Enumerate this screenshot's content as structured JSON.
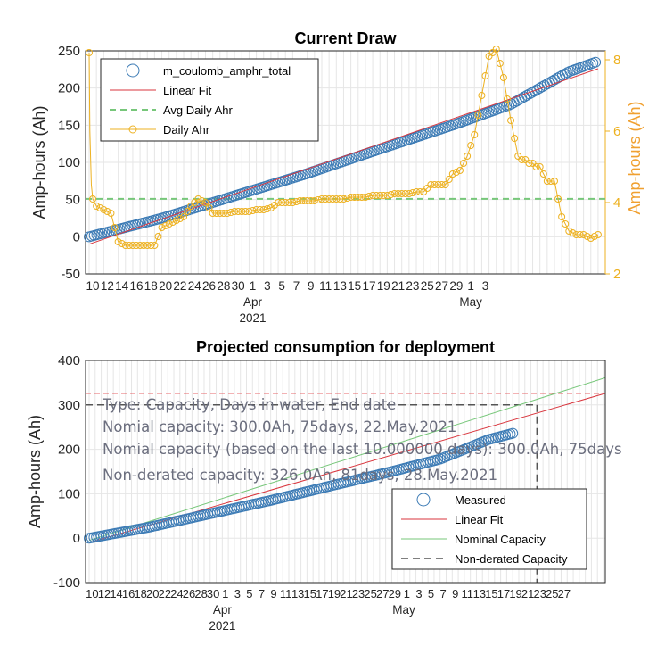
{
  "chart_data": [
    {
      "type": "line",
      "title": "Current Draw",
      "ylabel": "Amp-hours (Ah)",
      "ylabel_right": "Amp-hours (Ah)",
      "ylim": [
        -50,
        250
      ],
      "ylim_right": [
        2,
        8.25
      ],
      "yticks": [
        "-50",
        "0",
        "50",
        "100",
        "150",
        "200",
        "250"
      ],
      "yticks_right": [
        "2",
        "4",
        "6",
        "8"
      ],
      "xtick_labels": [
        "10",
        "12",
        "14",
        "16",
        "18",
        "20",
        "22",
        "24",
        "26",
        "28",
        "30",
        "1",
        "3",
        "5",
        "7",
        "9",
        "11",
        "13",
        "15",
        "17",
        "19",
        "21",
        "23",
        "25",
        "27",
        "29",
        "1",
        "3"
      ],
      "month_labels": [
        "Apr",
        "May"
      ],
      "year_label": "2021",
      "grid": true,
      "legend_position": "top-left",
      "series": [
        {
          "name": "m_coulomb_amphr_total",
          "axis": "left",
          "color": "#3C7BB5",
          "x_days": [
            0,
            10,
            20,
            30,
            40,
            50,
            58,
            62,
            66,
            70
          ],
          "values": [
            0,
            25,
            55,
            85,
            118,
            150,
            178,
            200,
            222,
            236
          ]
        },
        {
          "name": "Linear Fit",
          "axis": "left",
          "color": "#D9363E",
          "x_days": [
            0,
            70
          ],
          "values": [
            -10,
            226
          ]
        },
        {
          "name": "Avg Daily Ahr",
          "axis": "left",
          "color": "#77C77A",
          "x_days": [
            0,
            70
          ],
          "values": [
            51,
            51
          ]
        },
        {
          "name": "Daily Ahr",
          "axis": "right",
          "color": "#EDB120",
          "x_days": [
            0,
            0.1,
            0.3,
            0.5,
            1,
            2,
            3,
            4,
            5,
            6,
            7,
            8,
            9,
            10,
            11,
            12,
            13,
            14,
            15,
            16,
            17,
            18,
            19,
            20,
            21,
            22,
            23,
            24,
            25,
            26,
            27,
            28,
            29,
            30,
            31,
            32,
            33,
            34,
            35,
            36,
            37,
            38,
            39,
            40,
            41,
            42,
            43,
            44,
            45,
            46,
            47,
            48,
            49,
            50,
            51,
            52,
            53,
            54,
            55,
            56,
            57,
            58,
            59,
            59.5,
            60,
            60.5,
            61,
            61.5,
            62,
            62.5,
            63,
            64,
            65,
            66,
            67,
            68,
            69,
            70
          ],
          "values": [
            8.2,
            6.0,
            4.5,
            4.1,
            3.9,
            3.8,
            3.7,
            2.9,
            2.8,
            2.8,
            2.8,
            2.8,
            2.8,
            3.3,
            3.4,
            3.5,
            3.6,
            3.9,
            4.1,
            4.0,
            3.7,
            3.7,
            3.7,
            3.75,
            3.75,
            3.75,
            3.8,
            3.8,
            3.85,
            4.0,
            4.0,
            4.0,
            4.05,
            4.05,
            4.05,
            4.1,
            4.1,
            4.1,
            4.1,
            4.15,
            4.15,
            4.15,
            4.2,
            4.2,
            4.2,
            4.25,
            4.25,
            4.25,
            4.3,
            4.3,
            4.5,
            4.5,
            4.5,
            4.8,
            4.9,
            5.3,
            5.9,
            7.0,
            8.1,
            8.3,
            7.5,
            6.3,
            5.3,
            5.2,
            5.2,
            5.1,
            5.1,
            5.0,
            5.0,
            4.8,
            4.6,
            4.6,
            3.6,
            3.2,
            3.1,
            3.1,
            3.0,
            3.1
          ]
        }
      ]
    },
    {
      "type": "line",
      "title": "Projected consumption for deployment",
      "ylabel": "Amp-hours (Ah)",
      "ylim": [
        -100,
        400
      ],
      "yticks": [
        "-100",
        "0",
        "100",
        "200",
        "300",
        "400"
      ],
      "xtick_labels": [
        "10",
        "12",
        "14",
        "16",
        "18",
        "20",
        "22",
        "24",
        "26",
        "28",
        "30",
        "1",
        "3",
        "5",
        "7",
        "9",
        "11",
        "13",
        "15",
        "17",
        "19",
        "21",
        "23",
        "25",
        "27",
        "29",
        "1",
        "3",
        "5",
        "7",
        "9",
        "11",
        "13",
        "15",
        "17",
        "19",
        "21",
        "23",
        "25",
        "27"
      ],
      "month_labels": [
        "Apr",
        "May"
      ],
      "year_label": "2021",
      "grid": true,
      "legend_position": "bottom-right",
      "annotations": [
        "Type: Capacity, Days in water, End date",
        "Nomial capacity: 300.0Ah,    75days,  22.May.2021",
        "Nomial capacity (based on the last 10.000000 days): 300.0Ah,    75days",
        "Non-derated capacity: 326.0Ah,    81days,  28.May.2021"
      ],
      "series": [
        {
          "name": "Measured",
          "color": "#3C7BB5",
          "x_days": [
            0,
            10,
            20,
            30,
            40,
            50,
            58,
            62,
            66,
            70
          ],
          "values": [
            0,
            25,
            55,
            85,
            118,
            150,
            178,
            200,
            222,
            236
          ]
        },
        {
          "name": "Linear Fit",
          "color": "#D9363E",
          "x_days": [
            0,
            80
          ],
          "values": [
            -10,
            326
          ]
        },
        {
          "name": "Nominal Capacity",
          "color": "#77C77A",
          "x_days": [
            0,
            80
          ],
          "values": [
            -5,
            355
          ]
        },
        {
          "name": "Non-derated Capacity",
          "color": "#555555",
          "hline_values": [
            326,
            300
          ],
          "vline_day": 74
        }
      ]
    }
  ]
}
